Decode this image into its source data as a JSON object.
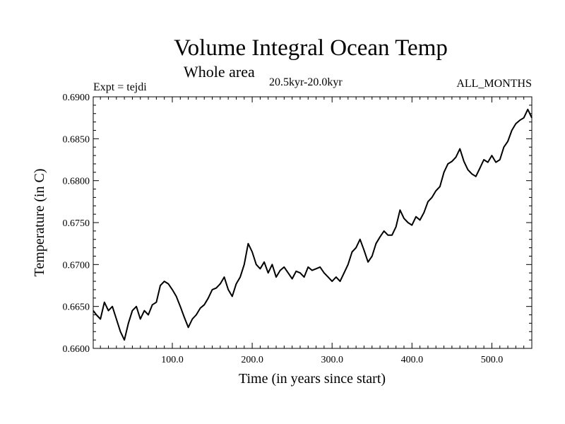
{
  "chart_data": {
    "type": "line",
    "title": "Volume Integral Ocean Temp",
    "subtitle": "Whole area",
    "period": "20.5kyr-20.0kyr",
    "experiment": "Expt = tejdi",
    "season": "ALL_MONTHS",
    "xlabel": "Time (in years since start)",
    "ylabel": "Temperature (in C)",
    "xlim": [
      1,
      550
    ],
    "ylim": [
      0.66,
      0.69
    ],
    "x_ticks": [
      100,
      200,
      300,
      400,
      500
    ],
    "x_tick_labels": [
      "100.0",
      "200.0",
      "300.0",
      "400.0",
      "500.0"
    ],
    "y_ticks": [
      0.66,
      0.665,
      0.67,
      0.675,
      0.68,
      0.685,
      0.69
    ],
    "y_tick_labels": [
      "0.6600",
      "0.6650",
      "0.6700",
      "0.6750",
      "0.6800",
      "0.6850",
      "0.6900"
    ],
    "grid": false,
    "series": [
      {
        "name": "Volume Integral Ocean Temp",
        "x": [
          1,
          5,
          10,
          15,
          20,
          25,
          30,
          35,
          40,
          45,
          50,
          55,
          60,
          65,
          70,
          75,
          80,
          85,
          90,
          95,
          100,
          105,
          110,
          115,
          120,
          125,
          130,
          135,
          140,
          145,
          150,
          155,
          160,
          165,
          170,
          175,
          180,
          185,
          190,
          195,
          200,
          205,
          210,
          215,
          220,
          225,
          230,
          235,
          240,
          245,
          250,
          255,
          260,
          265,
          270,
          275,
          280,
          285,
          290,
          295,
          300,
          305,
          310,
          315,
          320,
          325,
          330,
          335,
          340,
          345,
          350,
          355,
          360,
          365,
          370,
          375,
          380,
          385,
          390,
          395,
          400,
          405,
          410,
          415,
          420,
          425,
          430,
          435,
          440,
          445,
          450,
          455,
          460,
          465,
          470,
          475,
          480,
          485,
          490,
          495,
          500,
          505,
          510,
          515,
          520,
          525,
          530,
          535,
          540,
          545,
          550
        ],
        "y": [
          0.6645,
          0.664,
          0.6635,
          0.6655,
          0.6645,
          0.665,
          0.6635,
          0.662,
          0.661,
          0.663,
          0.6645,
          0.665,
          0.6635,
          0.6645,
          0.664,
          0.6652,
          0.6655,
          0.6675,
          0.668,
          0.6677,
          0.667,
          0.6662,
          0.665,
          0.6637,
          0.6625,
          0.6635,
          0.664,
          0.6648,
          0.6652,
          0.666,
          0.667,
          0.6672,
          0.6677,
          0.6685,
          0.667,
          0.6662,
          0.6677,
          0.6685,
          0.67,
          0.6725,
          0.6715,
          0.67,
          0.6695,
          0.6703,
          0.669,
          0.67,
          0.6685,
          0.6693,
          0.6697,
          0.669,
          0.6683,
          0.6692,
          0.669,
          0.6685,
          0.6697,
          0.6693,
          0.6695,
          0.6697,
          0.669,
          0.6685,
          0.668,
          0.6685,
          0.668,
          0.669,
          0.67,
          0.6715,
          0.672,
          0.673,
          0.6717,
          0.6703,
          0.671,
          0.6725,
          0.6733,
          0.674,
          0.6735,
          0.6735,
          0.6745,
          0.6765,
          0.6755,
          0.675,
          0.6747,
          0.6757,
          0.6753,
          0.6762,
          0.6775,
          0.678,
          0.6788,
          0.6793,
          0.681,
          0.682,
          0.6823,
          0.6828,
          0.6838,
          0.6823,
          0.6813,
          0.6808,
          0.6805,
          0.6815,
          0.6825,
          0.6822,
          0.683,
          0.6822,
          0.6825,
          0.684,
          0.6847,
          0.686,
          0.6868,
          0.6872,
          0.6875,
          0.6885,
          0.6875
        ]
      }
    ]
  }
}
